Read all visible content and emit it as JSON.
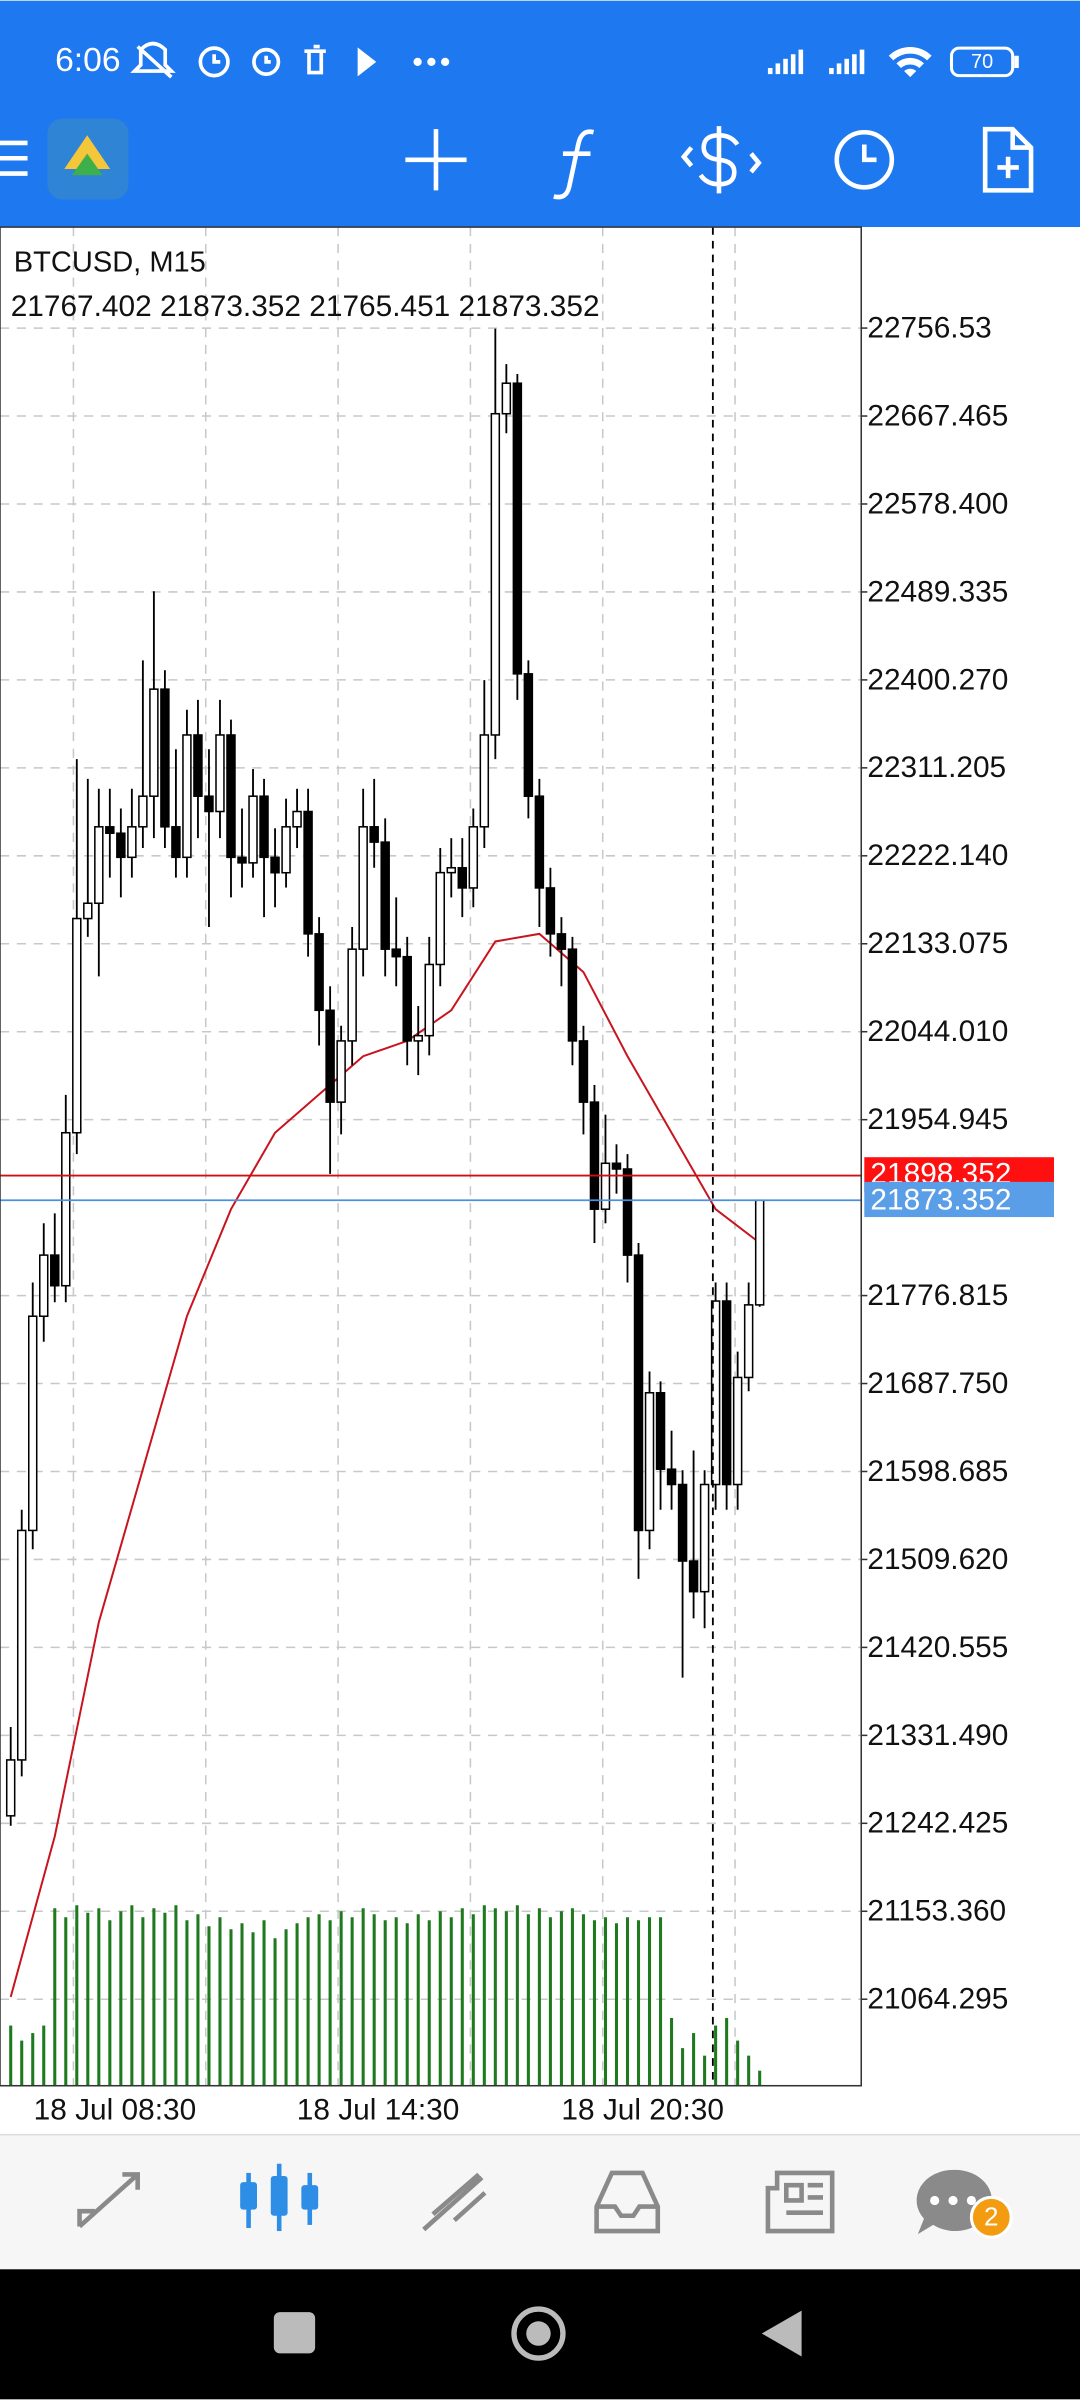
{
  "status_bar": {
    "time": "6:06",
    "battery": "70"
  },
  "chart": {
    "symbol": "BTCUSD, M15",
    "ohlc": "21767.402 21873.352 21765.451 21873.352",
    "ylim": [
      20976.7,
      22858.8
    ],
    "yticks": [
      22756.53,
      22667.465,
      {
        "value": 22578.4,
        "label": "22578.400"
      },
      22489.335,
      {
        "value": 22400.27,
        "label": "22400.270"
      },
      22311.205,
      {
        "value": 22222.14,
        "label": "22222.140"
      },
      22133.075,
      {
        "value": 22044.01,
        "label": "22044.010"
      },
      21954.945,
      21776.815,
      {
        "value": 21687.75,
        "label": "21687.750"
      },
      21598.685,
      {
        "value": 21509.62,
        "label": "21509.620"
      },
      21420.555,
      {
        "value": 21331.49,
        "label": "21331.490"
      },
      21242.425,
      {
        "value": 21153.36,
        "label": "21153.360"
      },
      21064.295
    ],
    "xticks": [
      "18 Jul 08:30",
      "18 Jul 14:30",
      "18 Jul 20:30"
    ],
    "ask_line": 21898.352,
    "bid_line": 21873.352,
    "candles": [
      [
        21250.0,
        21340.0,
        21240.0,
        21306.6
      ],
      [
        21306.6,
        21560.0,
        21290.0,
        21539.0
      ],
      [
        21539.0,
        21790.0,
        21520.0,
        21755.9
      ],
      [
        21755.9,
        21850.0,
        21730.0,
        21817.8
      ],
      [
        21817.8,
        21860.0,
        21770.0,
        21786.8
      ],
      [
        21786.8,
        21980.0,
        21770.0,
        21941.7
      ],
      [
        21941.7,
        22320.0,
        21920.0,
        22158.6
      ],
      [
        22158.6,
        22300.0,
        22140.0,
        22174.1
      ],
      [
        22174.1,
        22290.0,
        22100.0,
        22251.5
      ],
      [
        22251.5,
        22290.0,
        22200.0,
        22245.0
      ],
      [
        22245.0,
        22270.0,
        22180.0,
        22220.6
      ],
      [
        22220.6,
        22290.0,
        22200.0,
        22251.5
      ],
      [
        22251.5,
        22420.0,
        22230.0,
        22282.5
      ],
      [
        22282.5,
        22490.0,
        22240.0,
        22390.9
      ],
      [
        22390.9,
        22410.0,
        22230.0,
        22251.5
      ],
      [
        22251.5,
        22330.0,
        22200.0,
        22220.6
      ],
      [
        22220.6,
        22370.0,
        22200.0,
        22344.5
      ],
      [
        22344.5,
        22380.0,
        22240.0,
        22282.5
      ],
      [
        22282.5,
        22330.0,
        22150.0,
        22267.0
      ],
      [
        22267.0,
        22380.0,
        22240.0,
        22344.5
      ],
      [
        22344.5,
        22360.0,
        22180.0,
        22220.6
      ],
      [
        22220.6,
        22270.0,
        22190.0,
        22215.0
      ],
      [
        22215.0,
        22310.0,
        22200.0,
        22282.5
      ],
      [
        22282.5,
        22300.0,
        22160.0,
        22220.6
      ],
      [
        22220.6,
        22250.0,
        22170.0,
        22205.0
      ],
      [
        22205.0,
        22280.0,
        22190.0,
        22251.5
      ],
      [
        22251.5,
        22290.0,
        22230.0,
        22267.0
      ],
      [
        22267.0,
        22290.0,
        22120.0,
        22143.1
      ],
      [
        22143.1,
        22160.0,
        22030.0,
        22065.7
      ],
      [
        22065.7,
        22090.0,
        21900.0,
        21972.7
      ],
      [
        21972.7,
        22050.0,
        21940.0,
        22034.7
      ],
      [
        22034.7,
        22150.0,
        22010.0,
        22127.6
      ],
      [
        22127.6,
        22290.0,
        22100.0,
        22251.5
      ],
      [
        22251.5,
        22300.0,
        22210.0,
        22236.0
      ],
      [
        22236.0,
        22260.0,
        22100.0,
        22127.6
      ],
      [
        22127.6,
        22180.0,
        22090.0,
        22120.0
      ],
      [
        22120.0,
        22140.0,
        22010.0,
        22034.7
      ],
      [
        22034.7,
        22070.0,
        22000.0,
        22040.0
      ],
      [
        22040.0,
        22140.0,
        22020.0,
        22112.1
      ],
      [
        22112.1,
        22230.0,
        22090.0,
        22205.1
      ],
      [
        22205.1,
        22240.0,
        22180.0,
        22210.0
      ],
      [
        22210.0,
        22240.0,
        22160.0,
        22189.6
      ],
      [
        22189.6,
        22270.0,
        22170.0,
        22251.5
      ],
      [
        22251.5,
        22400.0,
        22230.0,
        22344.5
      ],
      [
        22344.5,
        22756.0,
        22320.0,
        22669.8
      ],
      [
        22669.8,
        22720.0,
        22650.0,
        22700.7
      ],
      [
        22700.7,
        22710.0,
        22380.0,
        22406.4
      ],
      [
        22406.4,
        22420.0,
        22260.0,
        22282.5
      ],
      [
        22282.5,
        22300.0,
        22150.0,
        22189.6
      ],
      [
        22189.6,
        22210.0,
        22120.0,
        22143.1
      ],
      [
        22143.1,
        22160.0,
        22090.0,
        22127.6
      ],
      [
        22127.6,
        22140.0,
        22010.0,
        22034.7
      ],
      [
        22034.7,
        22050.0,
        21940.0,
        21972.7
      ],
      [
        21972.7,
        21990.0,
        21830.0,
        21864.3
      ],
      [
        21864.3,
        21960.0,
        21850.0,
        21910.8
      ],
      [
        21910.8,
        21930.0,
        21880.0,
        21905.0
      ],
      [
        21905.0,
        21920.0,
        21790.0,
        21817.8
      ],
      [
        21817.8,
        21830.0,
        21490.0,
        21539.0
      ],
      [
        21539.0,
        21700.0,
        21520.0,
        21678.4
      ],
      [
        21678.4,
        21690.0,
        21560.0,
        21601.0
      ],
      [
        21601.0,
        21640.0,
        21560.0,
        21585.5
      ],
      [
        21585.5,
        21600.0,
        21390.0,
        21508.0
      ],
      [
        21508.0,
        21620.0,
        21450.0,
        21477.0
      ],
      [
        21477.0,
        21600.0,
        21440.0,
        21585.5
      ],
      [
        21585.5,
        21790.0,
        21560.0,
        21771.3
      ],
      [
        21771.3,
        21790.0,
        21560.0,
        21585.5
      ],
      [
        21585.5,
        21720.0,
        21560.0,
        21693.9
      ],
      [
        21693.9,
        21790.0,
        21680.0,
        21767.402
      ],
      [
        21767.402,
        21873.352,
        21765.451,
        21873.352
      ]
    ],
    "ma": {
      "x": [
        0,
        4,
        8,
        12,
        16,
        20,
        24,
        28,
        32,
        36,
        40,
        44,
        48,
        52,
        56,
        60,
        64,
        68
      ],
      "values": [
        21066.6,
        21229.2,
        21446.1,
        21601.0,
        21755.9,
        21864.3,
        21941.7,
        21980.5,
        22019.2,
        22034.7,
        22065.7,
        22135.4,
        22143.1,
        22104.4,
        22019.2,
        21941.7,
        21864.3,
        21830.2
      ]
    },
    "volume": [
      40,
      30,
      35,
      40,
      118,
      112,
      120,
      115,
      118,
      110,
      116,
      120,
      112,
      118,
      115,
      120,
      110,
      114,
      106,
      112,
      104,
      108,
      102,
      110,
      98,
      104,
      108,
      112,
      114,
      110,
      116,
      112,
      118,
      114,
      110,
      112,
      108,
      114,
      110,
      116,
      112,
      118,
      114,
      120,
      118,
      116,
      120,
      114,
      118,
      112,
      116,
      118,
      114,
      110,
      112,
      108,
      112,
      110,
      112,
      112,
      45,
      25,
      35,
      20,
      40,
      45,
      30,
      20,
      10
    ]
  },
  "bottom_nav": {
    "badge": "2"
  }
}
